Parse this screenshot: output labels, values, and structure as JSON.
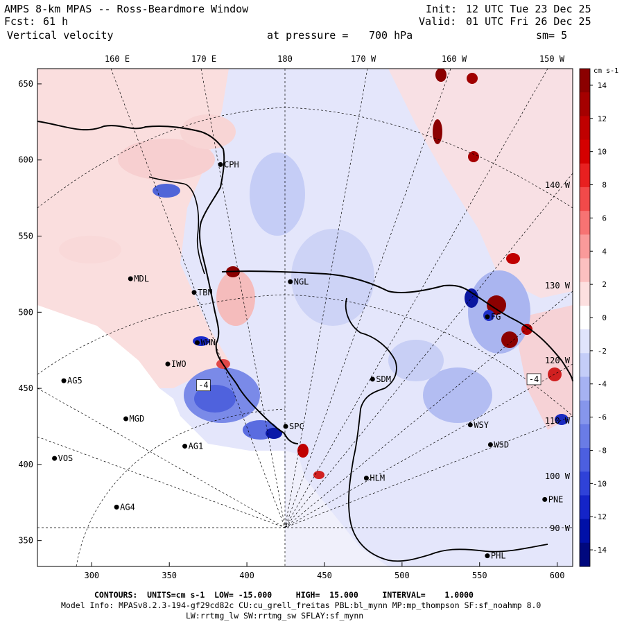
{
  "header": {
    "title": "AMPS 8-km MPAS -- Ross-Beardmore Window",
    "fcst_label": "Fcst:",
    "fcst_value": "61 h",
    "field": "Vertical velocity",
    "init_label": "Init:",
    "init_time": "12 UTC Tue 23 Dec 25",
    "valid_label": "Valid:",
    "valid_time": "01 UTC Fri 26 Dec 25",
    "level_label": "at pressure =",
    "level_value": "700 hPa",
    "smooth": "sm= 5"
  },
  "axes": {
    "x_ticks": [
      "300",
      "350",
      "400",
      "450",
      "500",
      "550",
      "600"
    ],
    "y_ticks": [
      "650",
      "600",
      "550",
      "500",
      "450",
      "400",
      "350"
    ],
    "x_range": [
      265,
      610
    ],
    "y_range": [
      333,
      660
    ],
    "longitudes_top": [
      "160 E",
      "170 E",
      "180",
      "170 W",
      "160 W",
      "150 W"
    ],
    "longitudes_right": [
      "140 W",
      "130 W",
      "120 W",
      "110 W",
      "100 W",
      "90 W"
    ]
  },
  "colorbar": {
    "units": "cm s-1",
    "tick_labels": [
      "14",
      "12",
      "10",
      "8",
      "6",
      "4",
      "2",
      "0",
      "-2",
      "-4",
      "-6",
      "-8",
      "-10",
      "-12",
      "-14"
    ],
    "colors": [
      "#8b0000",
      "#a50000",
      "#c00000",
      "#d50000",
      "#e82020",
      "#f24a4a",
      "#f77373",
      "#fa9a9a",
      "#fcc0c0",
      "#fde0e0",
      "#ffffff",
      "#e0e4fc",
      "#c4cdf8",
      "#a6b2f2",
      "#8696ec",
      "#6a7ce6",
      "#4c5fe0",
      "#2f42d8",
      "#1424c8",
      "#0010a8",
      "#00087e"
    ]
  },
  "stations": [
    {
      "id": "CPH",
      "x": 383,
      "y": 597
    },
    {
      "id": "MDL",
      "x": 325,
      "y": 522
    },
    {
      "id": "NGL",
      "x": 428,
      "y": 520
    },
    {
      "id": "TBN",
      "x": 366,
      "y": 513
    },
    {
      "id": "FG",
      "x": 555,
      "y": 497
    },
    {
      "id": "WHN",
      "x": 368,
      "y": 480
    },
    {
      "id": "IWO",
      "x": 349,
      "y": 466
    },
    {
      "id": "AG5",
      "x": 282,
      "y": 455
    },
    {
      "id": "SDM",
      "x": 481,
      "y": 456
    },
    {
      "id": "MGD",
      "x": 322,
      "y": 430
    },
    {
      "id": "SPC",
      "x": 425,
      "y": 425
    },
    {
      "id": "WSY",
      "x": 544,
      "y": 426
    },
    {
      "id": "AG1",
      "x": 360,
      "y": 412
    },
    {
      "id": "WSD",
      "x": 557,
      "y": 413
    },
    {
      "id": "VOS",
      "x": 276,
      "y": 404
    },
    {
      "id": "HLM",
      "x": 477,
      "y": 391
    },
    {
      "id": "PNE",
      "x": 592,
      "y": 377
    },
    {
      "id": "AG4",
      "x": 316,
      "y": 372
    },
    {
      "id": "PHL",
      "x": 555,
      "y": 340
    }
  ],
  "box_labels": [
    {
      "text": "-4",
      "x": 372,
      "y": 452
    },
    {
      "text": "-4",
      "x": 585,
      "y": 456
    }
  ],
  "footer": {
    "contours": "CONTOURS:  UNITS=cm s-1  LOW= -15.000     HIGH=  15.000     INTERVAL=    1.0000",
    "model_info": "Model Info: MPASv8.2.3-194-gf29cd82c CU:cu_grell_freitas PBL:bl_mynn MP:mp_thompson SF:sf_noahmp 8.0",
    "model_info2": "LW:rrtmg_lw SW:rrtmg_sw SFLAY:sf_mynn"
  }
}
